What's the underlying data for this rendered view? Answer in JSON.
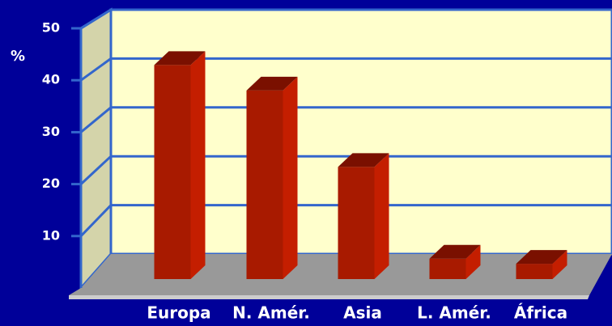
{
  "chart_data": {
    "type": "bar3d",
    "y_axis_label": "%",
    "categories": [
      "Europa",
      "N. Amér.",
      "Asia",
      "L. Amér.",
      "África"
    ],
    "values": [
      42,
      37,
      22,
      4,
      3
    ],
    "color": "#a81a00",
    "ylim": [
      0,
      50
    ],
    "yticks": [
      10,
      20,
      30,
      40,
      50
    ],
    "grid": true
  }
}
